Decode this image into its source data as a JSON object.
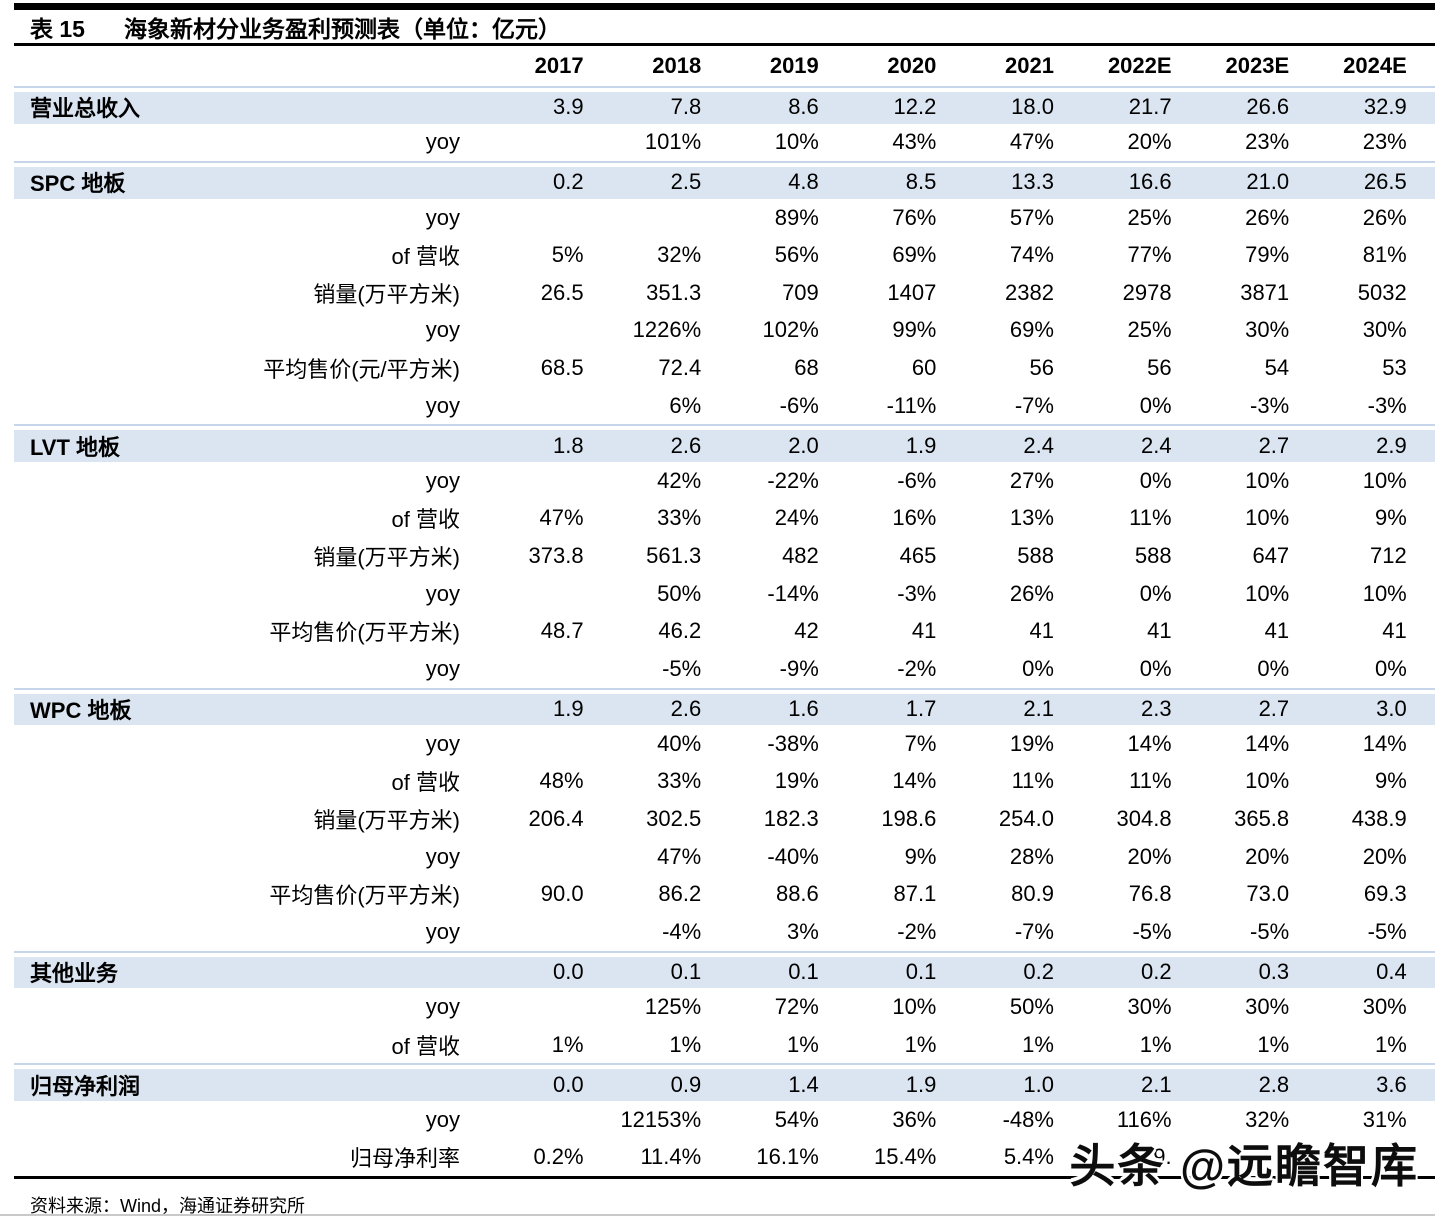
{
  "header": {
    "table_number": "表 15",
    "title": "海象新材分业务盈利预测表（单位：亿元）"
  },
  "table": {
    "columns": [
      "2017",
      "2018",
      "2019",
      "2020",
      "2021",
      "2022E",
      "2023E",
      "2024E"
    ],
    "rows": [
      {
        "label": "营业总收入",
        "type": "section",
        "values": [
          "3.9",
          "7.8",
          "8.6",
          "12.2",
          "18.0",
          "21.7",
          "26.6",
          "32.9"
        ]
      },
      {
        "label": "yoy",
        "type": "sub",
        "values": [
          "",
          "101%",
          "10%",
          "43%",
          "47%",
          "20%",
          "23%",
          "23%"
        ]
      },
      {
        "label": "SPC 地板",
        "type": "section",
        "values": [
          "0.2",
          "2.5",
          "4.8",
          "8.5",
          "13.3",
          "16.6",
          "21.0",
          "26.5"
        ]
      },
      {
        "label": "yoy",
        "type": "sub",
        "values": [
          "",
          "",
          "89%",
          "76%",
          "57%",
          "25%",
          "26%",
          "26%"
        ]
      },
      {
        "label": "of 营收",
        "type": "sub",
        "values": [
          "5%",
          "32%",
          "56%",
          "69%",
          "74%",
          "77%",
          "79%",
          "81%"
        ]
      },
      {
        "label": "销量(万平方米)",
        "type": "sub",
        "values": [
          "26.5",
          "351.3",
          "709",
          "1407",
          "2382",
          "2978",
          "3871",
          "5032"
        ]
      },
      {
        "label": "yoy",
        "type": "sub",
        "values": [
          "",
          "1226%",
          "102%",
          "99%",
          "69%",
          "25%",
          "30%",
          "30%"
        ]
      },
      {
        "label": "平均售价(元/平方米)",
        "type": "sub",
        "values": [
          "68.5",
          "72.4",
          "68",
          "60",
          "56",
          "56",
          "54",
          "53"
        ]
      },
      {
        "label": "yoy",
        "type": "sub",
        "values": [
          "",
          "6%",
          "-6%",
          "-11%",
          "-7%",
          "0%",
          "-3%",
          "-3%"
        ]
      },
      {
        "label": "LVT 地板",
        "type": "section",
        "values": [
          "1.8",
          "2.6",
          "2.0",
          "1.9",
          "2.4",
          "2.4",
          "2.7",
          "2.9"
        ]
      },
      {
        "label": "yoy",
        "type": "sub",
        "values": [
          "",
          "42%",
          "-22%",
          "-6%",
          "27%",
          "0%",
          "10%",
          "10%"
        ]
      },
      {
        "label": "of 营收",
        "type": "sub",
        "values": [
          "47%",
          "33%",
          "24%",
          "16%",
          "13%",
          "11%",
          "10%",
          "9%"
        ]
      },
      {
        "label": "销量(万平方米)",
        "type": "sub",
        "values": [
          "373.8",
          "561.3",
          "482",
          "465",
          "588",
          "588",
          "647",
          "712"
        ]
      },
      {
        "label": "yoy",
        "type": "sub",
        "values": [
          "",
          "50%",
          "-14%",
          "-3%",
          "26%",
          "0%",
          "10%",
          "10%"
        ]
      },
      {
        "label": "平均售价(万平方米)",
        "type": "sub",
        "values": [
          "48.7",
          "46.2",
          "42",
          "41",
          "41",
          "41",
          "41",
          "41"
        ]
      },
      {
        "label": "yoy",
        "type": "sub",
        "values": [
          "",
          "-5%",
          "-9%",
          "-2%",
          "0%",
          "0%",
          "0%",
          "0%"
        ]
      },
      {
        "label": "WPC 地板",
        "type": "section",
        "values": [
          "1.9",
          "2.6",
          "1.6",
          "1.7",
          "2.1",
          "2.3",
          "2.7",
          "3.0"
        ]
      },
      {
        "label": "yoy",
        "type": "sub",
        "values": [
          "",
          "40%",
          "-38%",
          "7%",
          "19%",
          "14%",
          "14%",
          "14%"
        ]
      },
      {
        "label": "of 营收",
        "type": "sub",
        "values": [
          "48%",
          "33%",
          "19%",
          "14%",
          "11%",
          "11%",
          "10%",
          "9%"
        ]
      },
      {
        "label": "销量(万平方米)",
        "type": "sub",
        "values": [
          "206.4",
          "302.5",
          "182.3",
          "198.6",
          "254.0",
          "304.8",
          "365.8",
          "438.9"
        ]
      },
      {
        "label": "yoy",
        "type": "sub",
        "values": [
          "",
          "47%",
          "-40%",
          "9%",
          "28%",
          "20%",
          "20%",
          "20%"
        ]
      },
      {
        "label": "平均售价(万平方米)",
        "type": "sub",
        "values": [
          "90.0",
          "86.2",
          "88.6",
          "87.1",
          "80.9",
          "76.8",
          "73.0",
          "69.3"
        ]
      },
      {
        "label": "yoy",
        "type": "sub",
        "values": [
          "",
          "-4%",
          "3%",
          "-2%",
          "-7%",
          "-5%",
          "-5%",
          "-5%"
        ]
      },
      {
        "label": "其他业务",
        "type": "section",
        "values": [
          "0.0",
          "0.1",
          "0.1",
          "0.1",
          "0.2",
          "0.2",
          "0.3",
          "0.4"
        ]
      },
      {
        "label": "yoy",
        "type": "sub",
        "values": [
          "",
          "125%",
          "72%",
          "10%",
          "50%",
          "30%",
          "30%",
          "30%"
        ]
      },
      {
        "label": "of 营收",
        "type": "sub",
        "values": [
          "1%",
          "1%",
          "1%",
          "1%",
          "1%",
          "1%",
          "1%",
          "1%"
        ]
      },
      {
        "label": "归母净利润",
        "type": "section",
        "values": [
          "0.0",
          "0.9",
          "1.4",
          "1.9",
          "1.0",
          "2.1",
          "2.8",
          "3.6"
        ]
      },
      {
        "label": "yoy",
        "type": "sub",
        "values": [
          "",
          "12153%",
          "54%",
          "36%",
          "-48%",
          "116%",
          "32%",
          "31%"
        ]
      },
      {
        "label": "归母净利率",
        "type": "sub",
        "values": [
          "0.2%",
          "11.4%",
          "16.1%",
          "15.4%",
          "5.4%",
          "9.",
          "",
          ""
        ]
      }
    ]
  },
  "footer": {
    "source": "资料来源：Wind，海通证券研究所"
  },
  "watermark": {
    "text": "头条 @远瞻智库"
  },
  "colors": {
    "band": "#dbe5f1",
    "band_border": "#c6d5e9",
    "rule": "#000000",
    "page_rule": "#c9c9c9"
  }
}
